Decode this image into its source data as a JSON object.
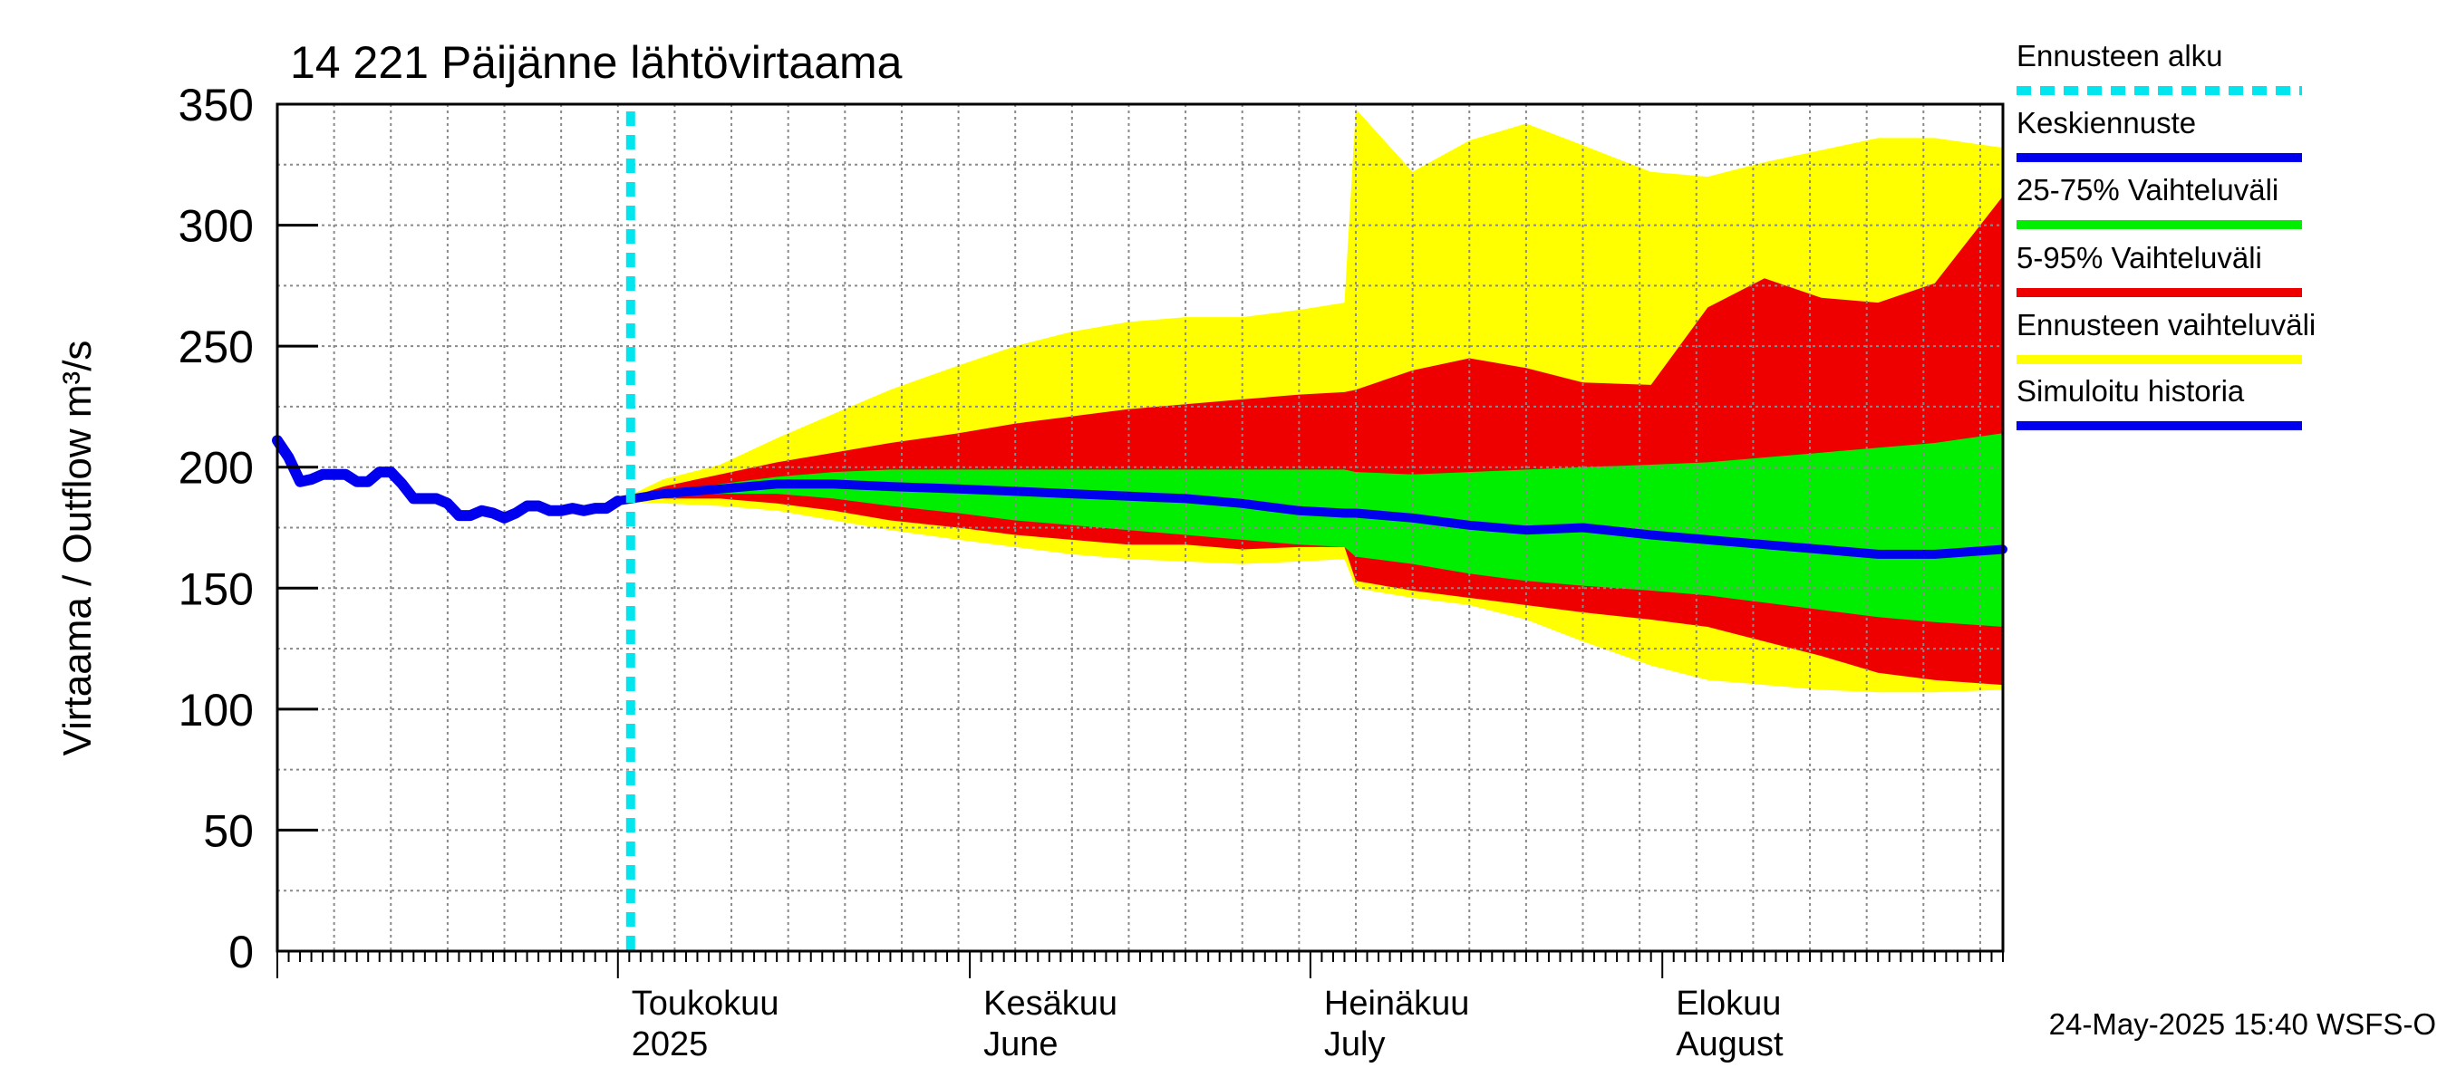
{
  "chart_data": {
    "type": "area",
    "title": "14 221 Päijänne lähtövirtaama",
    "ylabel": "Virtaama / Outflow    m³/s",
    "ylim": [
      0,
      350
    ],
    "yticks": [
      0,
      50,
      100,
      150,
      200,
      250,
      300,
      350
    ],
    "xlim": [
      "2025-04-01",
      "2025-08-31"
    ],
    "month_labels": [
      {
        "date": "2025-05-01",
        "fi": "Toukokuu",
        "en": "2025"
      },
      {
        "date": "2025-06-01",
        "fi": "Kesäkuu",
        "en": "June"
      },
      {
        "date": "2025-07-01",
        "fi": "Heinäkuu",
        "en": "July"
      },
      {
        "date": "2025-08-01",
        "fi": "Elokuu",
        "en": "August"
      }
    ],
    "forecast_start": "2025-05-01",
    "legend": [
      {
        "label": "Ennusteen alku",
        "color": "#00e5ee",
        "style": "dashed"
      },
      {
        "label": "Keskiennuste",
        "color": "#0000ee",
        "style": "solid"
      },
      {
        "label": "25-75% Vaihteluväli",
        "color": "#00ee00",
        "style": "solid"
      },
      {
        "label": "5-95% Vaihteluväli",
        "color": "#ee0000",
        "style": "solid"
      },
      {
        "label": "Ennusteen vaihteluväli",
        "color": "#ffff00",
        "style": "solid"
      },
      {
        "label": "Simuloitu historia",
        "color": "#0000ee",
        "style": "solid"
      }
    ],
    "colors": {
      "history": "#0000ee",
      "median": "#0000ee",
      "p25_75": "#00ee00",
      "p5_95": "#ee0000",
      "range": "#ffff00",
      "forecast_start": "#00e5ee"
    },
    "history": {
      "x": [
        "2025-04-01",
        "2025-04-02",
        "2025-04-03",
        "2025-04-04",
        "2025-04-05",
        "2025-04-06",
        "2025-04-07",
        "2025-04-08",
        "2025-04-09",
        "2025-04-10",
        "2025-04-11",
        "2025-04-12",
        "2025-04-13",
        "2025-04-14",
        "2025-04-15",
        "2025-04-16",
        "2025-04-17",
        "2025-04-18",
        "2025-04-19",
        "2025-04-20",
        "2025-04-21",
        "2025-04-22",
        "2025-04-23",
        "2025-04-24",
        "2025-04-25",
        "2025-04-26",
        "2025-04-27",
        "2025-04-28",
        "2025-04-29",
        "2025-04-30",
        "2025-05-01"
      ],
      "values": [
        211,
        204,
        194,
        195,
        197,
        197,
        197,
        194,
        194,
        198,
        198,
        193,
        187,
        187,
        187,
        185,
        180,
        180,
        182,
        181,
        179,
        181,
        184,
        184,
        182,
        182,
        183,
        182,
        183,
        183,
        186
      ]
    },
    "forecast": {
      "x": [
        "2025-05-01",
        "2025-05-05",
        "2025-05-10",
        "2025-05-15",
        "2025-05-20",
        "2025-05-25",
        "2025-05-31",
        "2025-06-05",
        "2025-06-10",
        "2025-06-15",
        "2025-06-20",
        "2025-06-25",
        "2025-06-30",
        "2025-07-04",
        "2025-07-05",
        "2025-07-10",
        "2025-07-15",
        "2025-07-20",
        "2025-07-25",
        "2025-07-31",
        "2025-08-05",
        "2025-08-10",
        "2025-08-15",
        "2025-08-20",
        "2025-08-25",
        "2025-08-31"
      ],
      "median": [
        186,
        189,
        191,
        193,
        193,
        192,
        191,
        190,
        189,
        188,
        187,
        185,
        182,
        181,
        181,
        179,
        176,
        174,
        175,
        172,
        170,
        168,
        166,
        164,
        164,
        166
      ],
      "p25": [
        186,
        188,
        189,
        189,
        187,
        184,
        181,
        178,
        176,
        174,
        172,
        170,
        168,
        167,
        163,
        160,
        156,
        153,
        151,
        149,
        147,
        144,
        141,
        138,
        136,
        134
      ],
      "p75": [
        186,
        189,
        193,
        196,
        198,
        199,
        199,
        199,
        199,
        199,
        199,
        199,
        199,
        199,
        198,
        197,
        198,
        199,
        200,
        201,
        202,
        204,
        206,
        208,
        210,
        214
      ],
      "p5": [
        186,
        187,
        187,
        185,
        182,
        178,
        175,
        172,
        170,
        168,
        168,
        166,
        167,
        167,
        153,
        149,
        146,
        143,
        140,
        137,
        134,
        128,
        122,
        115,
        112,
        110
      ],
      "p95": [
        186,
        192,
        197,
        202,
        206,
        210,
        214,
        218,
        221,
        224,
        226,
        228,
        230,
        231,
        232,
        240,
        245,
        241,
        235,
        234,
        266,
        278,
        270,
        268,
        276,
        312
      ],
      "min": [
        186,
        185,
        184,
        182,
        178,
        174,
        170,
        167,
        164,
        162,
        161,
        160,
        161,
        162,
        150,
        146,
        143,
        137,
        128,
        118,
        112,
        110,
        108,
        107,
        107,
        108
      ],
      "max": [
        186,
        195,
        201,
        212,
        222,
        232,
        242,
        250,
        256,
        260,
        262,
        262,
        265,
        268,
        348,
        322,
        335,
        342,
        333,
        322,
        320,
        326,
        331,
        336,
        336,
        332
      ]
    }
  },
  "footer": {
    "timestamp": "24-May-2025 15:40 WSFS-O"
  }
}
